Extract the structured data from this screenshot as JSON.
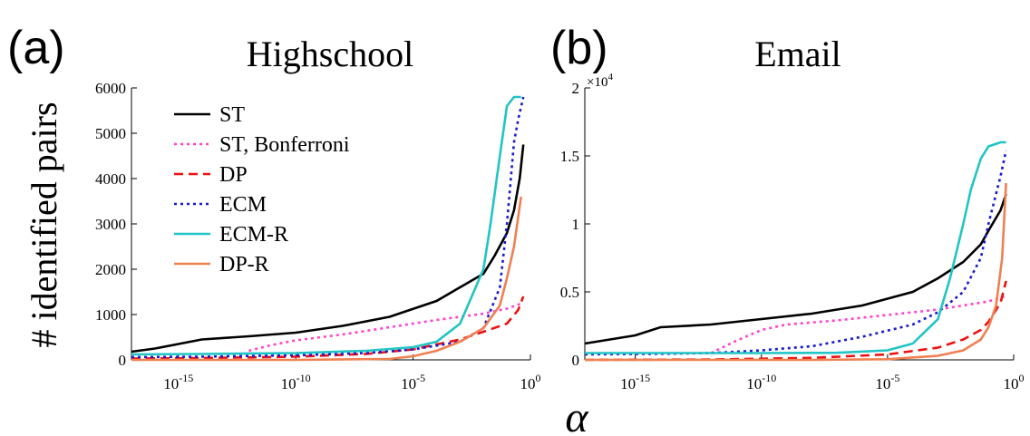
{
  "figure": {
    "ylabel": "# identified pairs",
    "xlabel": "α"
  },
  "chart_data": [
    {
      "panel_letter": "(a)",
      "type": "line",
      "title": "Highschool",
      "xscale": "log",
      "xlim": [
        1e-17,
        1
      ],
      "ylim": [
        0,
        6000
      ],
      "ytick_values": [
        0,
        1000,
        2000,
        3000,
        4000,
        5000,
        6000
      ],
      "ytick_labels": [
        "0",
        "1000",
        "2000",
        "3000",
        "4000",
        "5000",
        "6000"
      ],
      "xtick_values": [
        1e-15,
        1e-10,
        1e-05,
        1
      ],
      "xtick_labels": [
        {
          "base": "10",
          "exp": "-15"
        },
        {
          "base": "10",
          "exp": "-10"
        },
        {
          "base": "10",
          "exp": "-5"
        },
        {
          "base": "10",
          "exp": "0"
        }
      ],
      "exponent_label": "",
      "legend": {
        "placement": "upper-left"
      },
      "series": [
        {
          "name": "ST",
          "color": "#000000",
          "dash": "solid",
          "points": [
            [
              1e-17,
              180
            ],
            [
              1e-16,
              250
            ],
            [
              1e-15,
              350
            ],
            [
              1e-14,
              450
            ],
            [
              1e-12,
              520
            ],
            [
              1e-10,
              600
            ],
            [
              1e-08,
              750
            ],
            [
              1e-06,
              950
            ],
            [
              0.0001,
              1300
            ],
            [
              0.01,
              1900
            ],
            [
              0.03,
              2300
            ],
            [
              0.1,
              2800
            ],
            [
              0.2,
              3300
            ],
            [
              0.35,
              4000
            ],
            [
              0.5,
              4750
            ]
          ]
        },
        {
          "name": "ST, Bonferroni",
          "color": "#ff44cc",
          "dash": "dot",
          "points": [
            [
              1e-12,
              200
            ],
            [
              1e-11,
              330
            ],
            [
              1e-10,
              430
            ],
            [
              1e-08,
              560
            ],
            [
              1e-06,
              720
            ],
            [
              0.0001,
              880
            ],
            [
              0.01,
              1020
            ],
            [
              0.1,
              1130
            ],
            [
              0.5,
              1260
            ]
          ]
        },
        {
          "name": "DP",
          "color": "#ee1111",
          "dash": "dash",
          "points": [
            [
              1e-17,
              30
            ],
            [
              1e-14,
              40
            ],
            [
              1e-10,
              70
            ],
            [
              1e-07,
              130
            ],
            [
              1e-05,
              230
            ],
            [
              0.001,
              450
            ],
            [
              0.01,
              620
            ],
            [
              0.1,
              800
            ],
            [
              0.3,
              1100
            ],
            [
              0.5,
              1400
            ]
          ]
        },
        {
          "name": "ECM",
          "color": "#1a1acc",
          "dash": "dot",
          "points": [
            [
              1e-17,
              60
            ],
            [
              1e-14,
              70
            ],
            [
              1e-10,
              100
            ],
            [
              1e-07,
              150
            ],
            [
              1e-05,
              230
            ],
            [
              0.001,
              400
            ],
            [
              0.01,
              700
            ],
            [
              0.05,
              1600
            ],
            [
              0.1,
              3000
            ],
            [
              0.2,
              4800
            ],
            [
              0.3,
              5300
            ],
            [
              0.5,
              5800
            ]
          ]
        },
        {
          "name": "ECM-R",
          "color": "#22c4c4",
          "dash": "solid",
          "points": [
            [
              1e-17,
              120
            ],
            [
              1e-14,
              130
            ],
            [
              1e-10,
              150
            ],
            [
              1e-07,
              200
            ],
            [
              1e-05,
              280
            ],
            [
              0.0001,
              400
            ],
            [
              0.001,
              800
            ],
            [
              0.01,
              2000
            ],
            [
              0.02,
              3000
            ],
            [
              0.05,
              4500
            ],
            [
              0.1,
              5600
            ],
            [
              0.2,
              5800
            ],
            [
              0.4,
              5800
            ]
          ]
        },
        {
          "name": "DP-R",
          "color": "#f08050",
          "dash": "solid",
          "points": [
            [
              1e-17,
              0
            ],
            [
              1e-10,
              0
            ],
            [
              1e-06,
              20
            ],
            [
              1e-05,
              80
            ],
            [
              0.0001,
              200
            ],
            [
              0.001,
              400
            ],
            [
              0.01,
              700
            ],
            [
              0.05,
              1200
            ],
            [
              0.1,
              1800
            ],
            [
              0.2,
              2500
            ],
            [
              0.4,
              3600
            ]
          ]
        }
      ]
    },
    {
      "panel_letter": "(b)",
      "type": "line",
      "title": "Email",
      "xscale": "log",
      "xlim": [
        1e-17,
        1
      ],
      "ylim": [
        0,
        20000
      ],
      "ytick_values": [
        0,
        5000,
        10000,
        15000,
        20000
      ],
      "ytick_labels": [
        "0",
        "0.5",
        "1",
        "1.5",
        "2"
      ],
      "xtick_values": [
        1e-15,
        1e-10,
        1e-05,
        1
      ],
      "xtick_labels": [
        {
          "base": "10",
          "exp": "-15"
        },
        {
          "base": "10",
          "exp": "-10"
        },
        {
          "base": "10",
          "exp": "-5"
        },
        {
          "base": "10",
          "exp": "0"
        }
      ],
      "exponent_label": {
        "prefix": "×10",
        "exp": "4"
      },
      "series": [
        {
          "name": "ST",
          "color": "#000000",
          "dash": "solid",
          "points": [
            [
              1e-17,
              1200
            ],
            [
              1e-16,
              1500
            ],
            [
              1e-15,
              1800
            ],
            [
              1e-14,
              2400
            ],
            [
              1e-12,
              2600
            ],
            [
              1e-10,
              3000
            ],
            [
              1e-08,
              3400
            ],
            [
              1e-06,
              4000
            ],
            [
              0.0001,
              5000
            ],
            [
              0.001,
              6000
            ],
            [
              0.01,
              7200
            ],
            [
              0.05,
              8500
            ],
            [
              0.1,
              9500
            ],
            [
              0.3,
              11000
            ],
            [
              0.5,
              12200
            ]
          ]
        },
        {
          "name": "ST, Bonferroni",
          "color": "#ff44cc",
          "dash": "dot",
          "points": [
            [
              1e-12,
              500
            ],
            [
              1e-11,
              1400
            ],
            [
              1e-10,
              2200
            ],
            [
              1e-09,
              2600
            ],
            [
              1e-07,
              2900
            ],
            [
              1e-05,
              3300
            ],
            [
              0.001,
              3700
            ],
            [
              0.01,
              4000
            ],
            [
              0.1,
              4300
            ],
            [
              0.5,
              4700
            ]
          ]
        },
        {
          "name": "DP",
          "color": "#ee1111",
          "dash": "dash",
          "points": [
            [
              1e-17,
              0
            ],
            [
              1e-12,
              30
            ],
            [
              1e-08,
              150
            ],
            [
              1e-05,
              400
            ],
            [
              0.001,
              900
            ],
            [
              0.01,
              1500
            ],
            [
              0.05,
              2200
            ],
            [
              0.1,
              2800
            ],
            [
              0.3,
              4200
            ],
            [
              0.5,
              5800
            ]
          ]
        },
        {
          "name": "ECM",
          "color": "#1a1acc",
          "dash": "dot",
          "points": [
            [
              1e-17,
              400
            ],
            [
              1e-14,
              450
            ],
            [
              1e-12,
              500
            ],
            [
              1e-10,
              700
            ],
            [
              1e-08,
              1000
            ],
            [
              1e-06,
              1700
            ],
            [
              0.0001,
              2600
            ],
            [
              0.001,
              3500
            ],
            [
              0.01,
              5000
            ],
            [
              0.05,
              7500
            ],
            [
              0.1,
              10000
            ],
            [
              0.3,
              13500
            ],
            [
              0.5,
              15400
            ]
          ]
        },
        {
          "name": "ECM-R",
          "color": "#22c4c4",
          "dash": "solid",
          "points": [
            [
              1e-17,
              500
            ],
            [
              1e-14,
              500
            ],
            [
              1e-10,
              500
            ],
            [
              1e-07,
              520
            ],
            [
              1e-05,
              700
            ],
            [
              0.0001,
              1200
            ],
            [
              0.001,
              3000
            ],
            [
              0.003,
              6000
            ],
            [
              0.01,
              10000
            ],
            [
              0.02,
              12500
            ],
            [
              0.05,
              14800
            ],
            [
              0.1,
              15700
            ],
            [
              0.3,
              16000
            ],
            [
              0.5,
              16000
            ]
          ]
        },
        {
          "name": "DP-R",
          "color": "#f08050",
          "dash": "solid",
          "points": [
            [
              1e-17,
              0
            ],
            [
              1e-08,
              0
            ],
            [
              1e-05,
              50
            ],
            [
              0.001,
              300
            ],
            [
              0.01,
              700
            ],
            [
              0.05,
              1500
            ],
            [
              0.1,
              2400
            ],
            [
              0.2,
              4000
            ],
            [
              0.35,
              7500
            ],
            [
              0.5,
              13000
            ]
          ]
        }
      ]
    }
  ]
}
